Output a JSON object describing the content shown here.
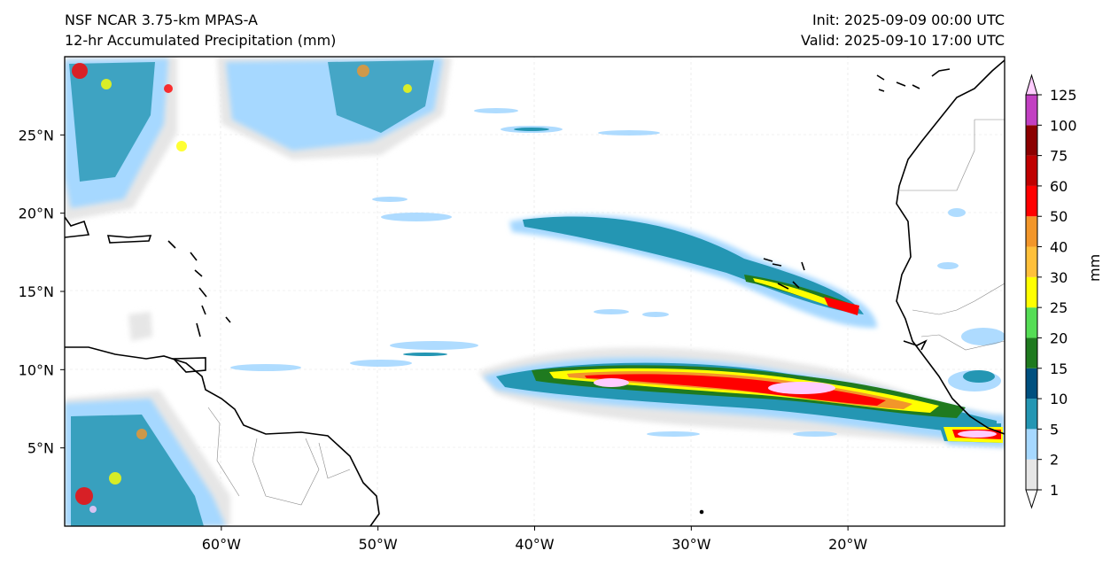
{
  "title": {
    "left_line1": "NSF NCAR 3.75-km MPAS-A",
    "left_line2": "12-hr Accumulated Precipitation (mm)",
    "right_line1": "Init: 2025-09-09 00:00 UTC",
    "right_line2": "Valid: 2025-09-10 17:00 UTC"
  },
  "map": {
    "lon_ticks": [
      {
        "lon": -60,
        "label": "60°W"
      },
      {
        "lon": -50,
        "label": "50°W"
      },
      {
        "lon": -40,
        "label": "40°W"
      },
      {
        "lon": -30,
        "label": "30°W"
      },
      {
        "lon": -20,
        "label": "20°W"
      }
    ],
    "lat_ticks": [
      {
        "lat": 5,
        "label": "5°N"
      },
      {
        "lat": 10,
        "label": "10°N"
      },
      {
        "lat": 15,
        "label": "15°N"
      },
      {
        "lat": 20,
        "label": "20°N"
      },
      {
        "lat": 25,
        "label": "25°N"
      }
    ],
    "extent": {
      "lon_min": -70,
      "lon_max": -10,
      "lat_min": 0,
      "lat_max": 30
    }
  },
  "colorbar": {
    "label": "mm",
    "levels": [
      1,
      2,
      5,
      10,
      15,
      20,
      25,
      30,
      40,
      50,
      60,
      75,
      100,
      125
    ],
    "level_labels": [
      "1",
      "2",
      "5",
      "10",
      "15",
      "20",
      "25",
      "30",
      "40",
      "50",
      "60",
      "75",
      "100",
      "125"
    ],
    "colors": [
      "#e6e6e6",
      "#a6d8ff",
      "#2496b3",
      "#00507f",
      "#1f7a1f",
      "#55dd55",
      "#ffff00",
      "#ffc03a",
      "#f2962a",
      "#ff0000",
      "#c00000",
      "#8c0000",
      "#c23fc2",
      "#ffccff"
    ],
    "under_color": "#ffffff",
    "over_color": "#ffccff"
  }
}
